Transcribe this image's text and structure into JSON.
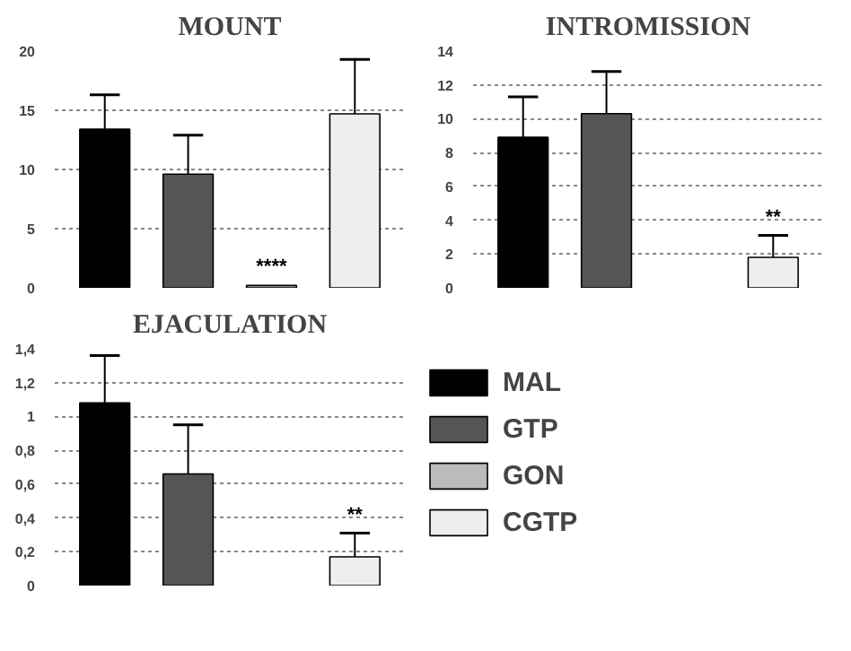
{
  "chart_data": [
    {
      "type": "bar",
      "title": "MOUNT",
      "categories": [
        null,
        null,
        null,
        null
      ],
      "ylim": [
        0,
        20
      ],
      "yticks": [
        0,
        5,
        10,
        15,
        20
      ],
      "grid": "y",
      "legend": false,
      "tick_labels": "y",
      "series": [
        {
          "color": "#000000",
          "values": [
            13.4,
            null,
            null,
            null
          ],
          "errors": [
            [
              13.4,
              16.3
            ],
            null,
            null,
            null
          ]
        },
        {
          "color": "#555555",
          "values": [
            null,
            9.6,
            null,
            null
          ],
          "errors": [
            null,
            [
              9.6,
              12.9
            ],
            null,
            null
          ]
        },
        {
          "color": "#bbbbbb",
          "values": [
            null,
            null,
            0.2,
            null
          ],
          "value_labels": [
            null,
            null,
            "****",
            null
          ]
        },
        {
          "color": "#eeeeee",
          "values": [
            null,
            null,
            null,
            14.7
          ],
          "errors": [
            null,
            null,
            null,
            [
              14.7,
              19.3
            ]
          ]
        }
      ]
    },
    {
      "type": "bar",
      "title": "INTROMISSION",
      "categories": [
        null,
        null,
        null,
        null
      ],
      "ylim": [
        0,
        14
      ],
      "yticks": [
        0,
        2,
        4,
        6,
        8,
        10,
        12,
        14
      ],
      "grid": "y",
      "legend": false,
      "tick_labels": "y",
      "series": [
        {
          "color": "#000000",
          "values": [
            8.9,
            null,
            null,
            null
          ],
          "errors": [
            [
              8.9,
              11.3
            ],
            null,
            null,
            null
          ]
        },
        {
          "color": "#555555",
          "values": [
            null,
            10.3,
            null,
            null
          ],
          "errors": [
            null,
            [
              10.3,
              12.8
            ],
            null,
            null
          ]
        },
        {
          "color": "#bbbbbb",
          "values": [
            null,
            null,
            null,
            null
          ]
        },
        {
          "color": "#eeeeee",
          "values": [
            null,
            null,
            null,
            1.8
          ],
          "errors": [
            null,
            null,
            null,
            [
              1.8,
              3.1
            ]
          ],
          "value_labels": [
            null,
            null,
            null,
            "**"
          ]
        }
      ]
    },
    {
      "type": "bar",
      "title": "EJACULATION",
      "categories": [
        null,
        null,
        null,
        null
      ],
      "ylim": [
        0,
        1.4
      ],
      "grid": "y",
      "legend": "right",
      "tick_labels": "y",
      "yticks": [
        0,
        {
          "value": 0.2,
          "label": "0,2"
        },
        {
          "value": 0.4,
          "label": "0,4"
        },
        {
          "value": 0.6,
          "label": "0,6"
        },
        {
          "value": 0.8,
          "label": "0,8"
        },
        1,
        {
          "value": 1.2,
          "label": "1,2"
        },
        {
          "value": 1.4,
          "label": "1,4"
        }
      ],
      "series": [
        {
          "name": "MAL",
          "color": "#000000",
          "values": [
            1.08,
            null,
            null,
            null
          ],
          "errors": [
            [
              1.08,
              1.36
            ],
            null,
            null,
            null
          ]
        },
        {
          "name": "GTP",
          "color": "#555555",
          "values": [
            null,
            0.66,
            null,
            null
          ],
          "errors": [
            null,
            [
              0.66,
              0.95
            ],
            null,
            null
          ]
        },
        {
          "name": "GON",
          "color": "#bbbbbb",
          "values": [
            null,
            null,
            null,
            null
          ]
        },
        {
          "name": "CGTP",
          "color": "#eeeeee",
          "values": [
            null,
            null,
            null,
            0.17
          ],
          "errors": [
            null,
            null,
            null,
            [
              0.17,
              0.31
            ]
          ],
          "value_labels": [
            null,
            null,
            null,
            "**"
          ]
        }
      ]
    }
  ]
}
